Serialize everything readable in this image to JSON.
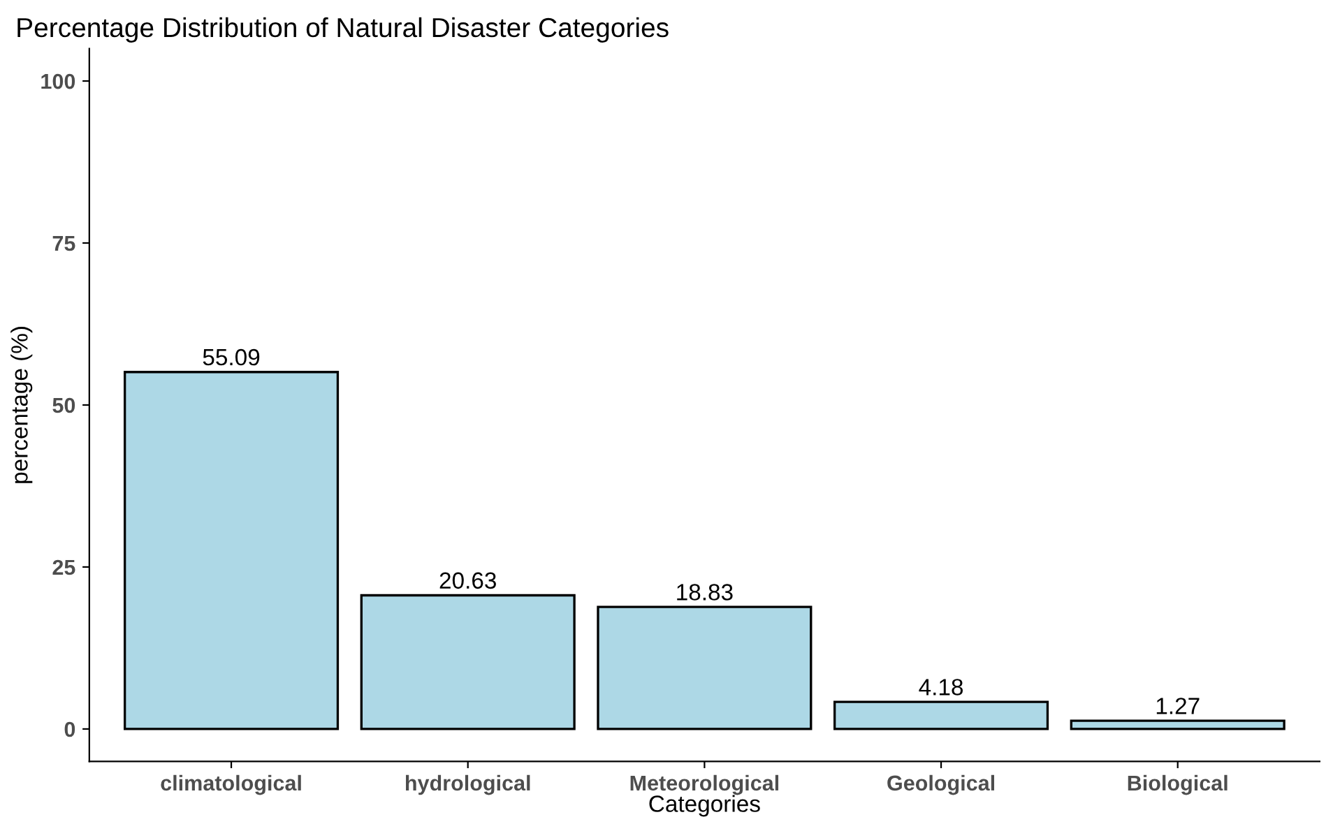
{
  "chart_data": {
    "type": "bar",
    "title": "Percentage Distribution of Natural Disaster Categories",
    "xlabel": "Categories",
    "ylabel": "percentage (%)",
    "categories": [
      "climatological",
      "hydrological",
      "Meteorological",
      "Geological",
      "Biological"
    ],
    "values": [
      55.09,
      20.63,
      18.83,
      4.18,
      1.27
    ],
    "color": "#add8e6",
    "ylim": [
      -5,
      105
    ],
    "yticks": [
      0,
      25,
      50,
      75,
      100
    ],
    "data_labels": true,
    "grid": false,
    "legend": false
  }
}
